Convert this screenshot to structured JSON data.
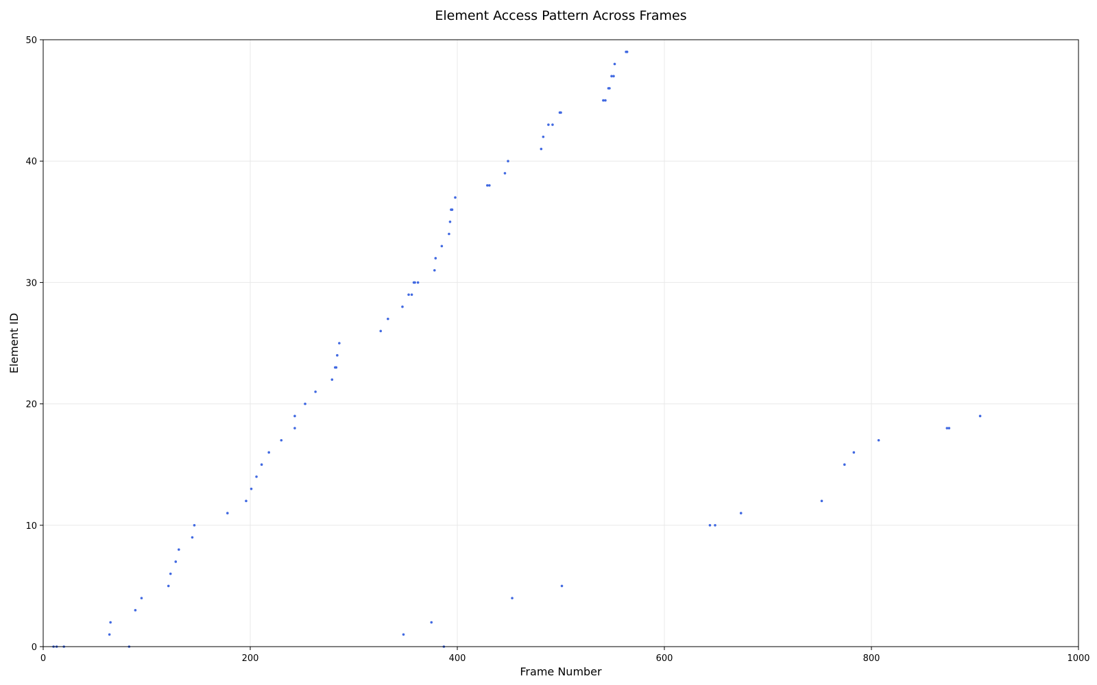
{
  "chart_data": {
    "type": "scatter",
    "title": "Element Access Pattern Across Frames",
    "xlabel": "Frame Number",
    "ylabel": "Element ID",
    "xlim": [
      0,
      1000
    ],
    "ylim": [
      0,
      50
    ],
    "xticks": [
      0,
      200,
      400,
      600,
      800,
      1000
    ],
    "yticks": [
      0,
      10,
      20,
      30,
      40,
      50
    ],
    "grid": true,
    "color": "#4169e1",
    "points": [
      [
        10,
        0
      ],
      [
        13,
        0
      ],
      [
        20,
        0
      ],
      [
        64,
        1
      ],
      [
        65,
        2
      ],
      [
        83,
        0
      ],
      [
        89,
        3
      ],
      [
        95,
        4
      ],
      [
        121,
        5
      ],
      [
        123,
        6
      ],
      [
        128,
        7
      ],
      [
        131,
        8
      ],
      [
        144,
        9
      ],
      [
        146,
        10
      ],
      [
        178,
        11
      ],
      [
        196,
        12
      ],
      [
        201,
        13
      ],
      [
        206,
        14
      ],
      [
        211,
        15
      ],
      [
        218,
        16
      ],
      [
        230,
        17
      ],
      [
        243,
        18
      ],
      [
        243,
        19
      ],
      [
        253,
        20
      ],
      [
        263,
        21
      ],
      [
        279,
        22
      ],
      [
        282,
        23
      ],
      [
        283,
        23
      ],
      [
        284,
        24
      ],
      [
        286,
        25
      ],
      [
        326,
        26
      ],
      [
        333,
        27
      ],
      [
        347,
        28
      ],
      [
        348,
        1
      ],
      [
        353,
        29
      ],
      [
        356,
        29
      ],
      [
        358,
        30
      ],
      [
        359,
        30
      ],
      [
        362,
        30
      ],
      [
        375,
        2
      ],
      [
        378,
        31
      ],
      [
        379,
        32
      ],
      [
        385,
        33
      ],
      [
        387,
        0
      ],
      [
        392,
        34
      ],
      [
        393,
        35
      ],
      [
        394,
        36
      ],
      [
        395,
        36
      ],
      [
        398,
        37
      ],
      [
        429,
        38
      ],
      [
        431,
        38
      ],
      [
        446,
        39
      ],
      [
        449,
        40
      ],
      [
        453,
        4
      ],
      [
        481,
        41
      ],
      [
        483,
        42
      ],
      [
        488,
        43
      ],
      [
        492,
        43
      ],
      [
        499,
        44
      ],
      [
        500,
        44
      ],
      [
        501,
        5
      ],
      [
        541,
        45
      ],
      [
        543,
        45
      ],
      [
        546,
        46
      ],
      [
        547,
        46
      ],
      [
        549,
        47
      ],
      [
        551,
        47
      ],
      [
        552,
        48
      ],
      [
        563,
        49
      ],
      [
        564,
        49
      ],
      [
        644,
        10
      ],
      [
        649,
        10
      ],
      [
        674,
        11
      ],
      [
        752,
        12
      ],
      [
        774,
        15
      ],
      [
        783,
        16
      ],
      [
        807,
        17
      ],
      [
        873,
        18
      ],
      [
        875,
        18
      ],
      [
        905,
        19
      ]
    ]
  }
}
